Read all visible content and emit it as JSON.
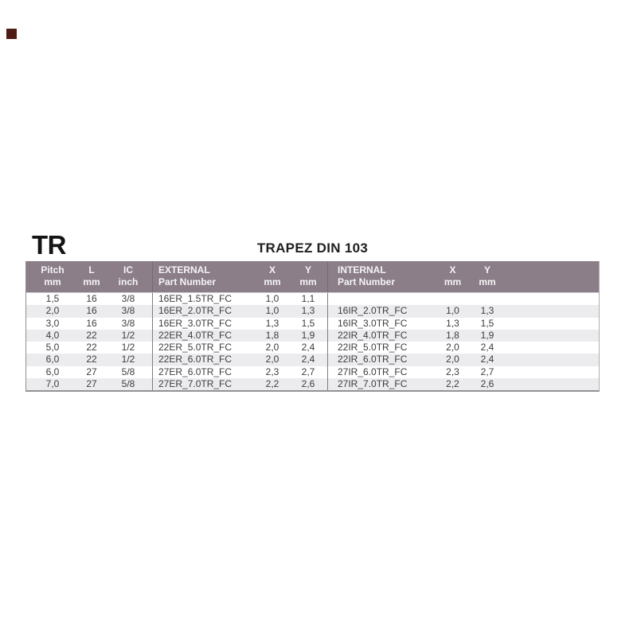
{
  "page_marker": {
    "color": "#4f1c15"
  },
  "header": {
    "title": "TR",
    "subtitle": "TRAPEZ DIN 103"
  },
  "colors": {
    "marker": "#4f1c15",
    "header_bg": "#8b7e88",
    "header_text": "#f6f4f6",
    "row_alt": "#ececef",
    "row_text": "#3c3c3e",
    "divider": "#7d7d80",
    "border_bottom": "#929295"
  },
  "table": {
    "columns": [
      {
        "label": "Pitch",
        "unit": "mm"
      },
      {
        "label": "L",
        "unit": "mm"
      },
      {
        "label": "IC",
        "unit": "inch"
      },
      {
        "label": "EXTERNAL",
        "unit": "Part Number"
      },
      {
        "label": "X",
        "unit": "mm"
      },
      {
        "label": "Y",
        "unit": "mm"
      },
      {
        "label": "INTERNAL",
        "unit": "Part Number"
      },
      {
        "label": "X",
        "unit": "mm"
      },
      {
        "label": "Y",
        "unit": "mm"
      }
    ],
    "rows": [
      [
        "1,5",
        "16",
        "3/8",
        "16ER_1.5TR_FC",
        "1,0",
        "1,1",
        "",
        "",
        ""
      ],
      [
        "2,0",
        "16",
        "3/8",
        "16ER_2.0TR_FC",
        "1,0",
        "1,3",
        "16IR_2.0TR_FC",
        "1,0",
        "1,3"
      ],
      [
        "3,0",
        "16",
        "3/8",
        "16ER_3.0TR_FC",
        "1,3",
        "1,5",
        "16IR_3.0TR_FC",
        "1,3",
        "1,5"
      ],
      [
        "4,0",
        "22",
        "1/2",
        "22ER_4.0TR_FC",
        "1,8",
        "1,9",
        "22IR_4.0TR_FC",
        "1,8",
        "1,9"
      ],
      [
        "5,0",
        "22",
        "1/2",
        "22ER_5.0TR_FC",
        "2,0",
        "2,4",
        "22IR_5.0TR_FC",
        "2,0",
        "2,4"
      ],
      [
        "6,0",
        "22",
        "1/2",
        "22ER_6.0TR_FC",
        "2,0",
        "2,4",
        "22IR_6.0TR_FC",
        "2,0",
        "2,4"
      ],
      [
        "6,0",
        "27",
        "5/8",
        "27ER_6.0TR_FC",
        "2,3",
        "2,7",
        "27IR_6.0TR_FC",
        "2,3",
        "2,7"
      ],
      [
        "7,0",
        "27",
        "5/8",
        "27ER_7.0TR_FC",
        "2,2",
        "2,6",
        "27IR_7.0TR_FC",
        "2,2",
        "2,6"
      ]
    ]
  }
}
